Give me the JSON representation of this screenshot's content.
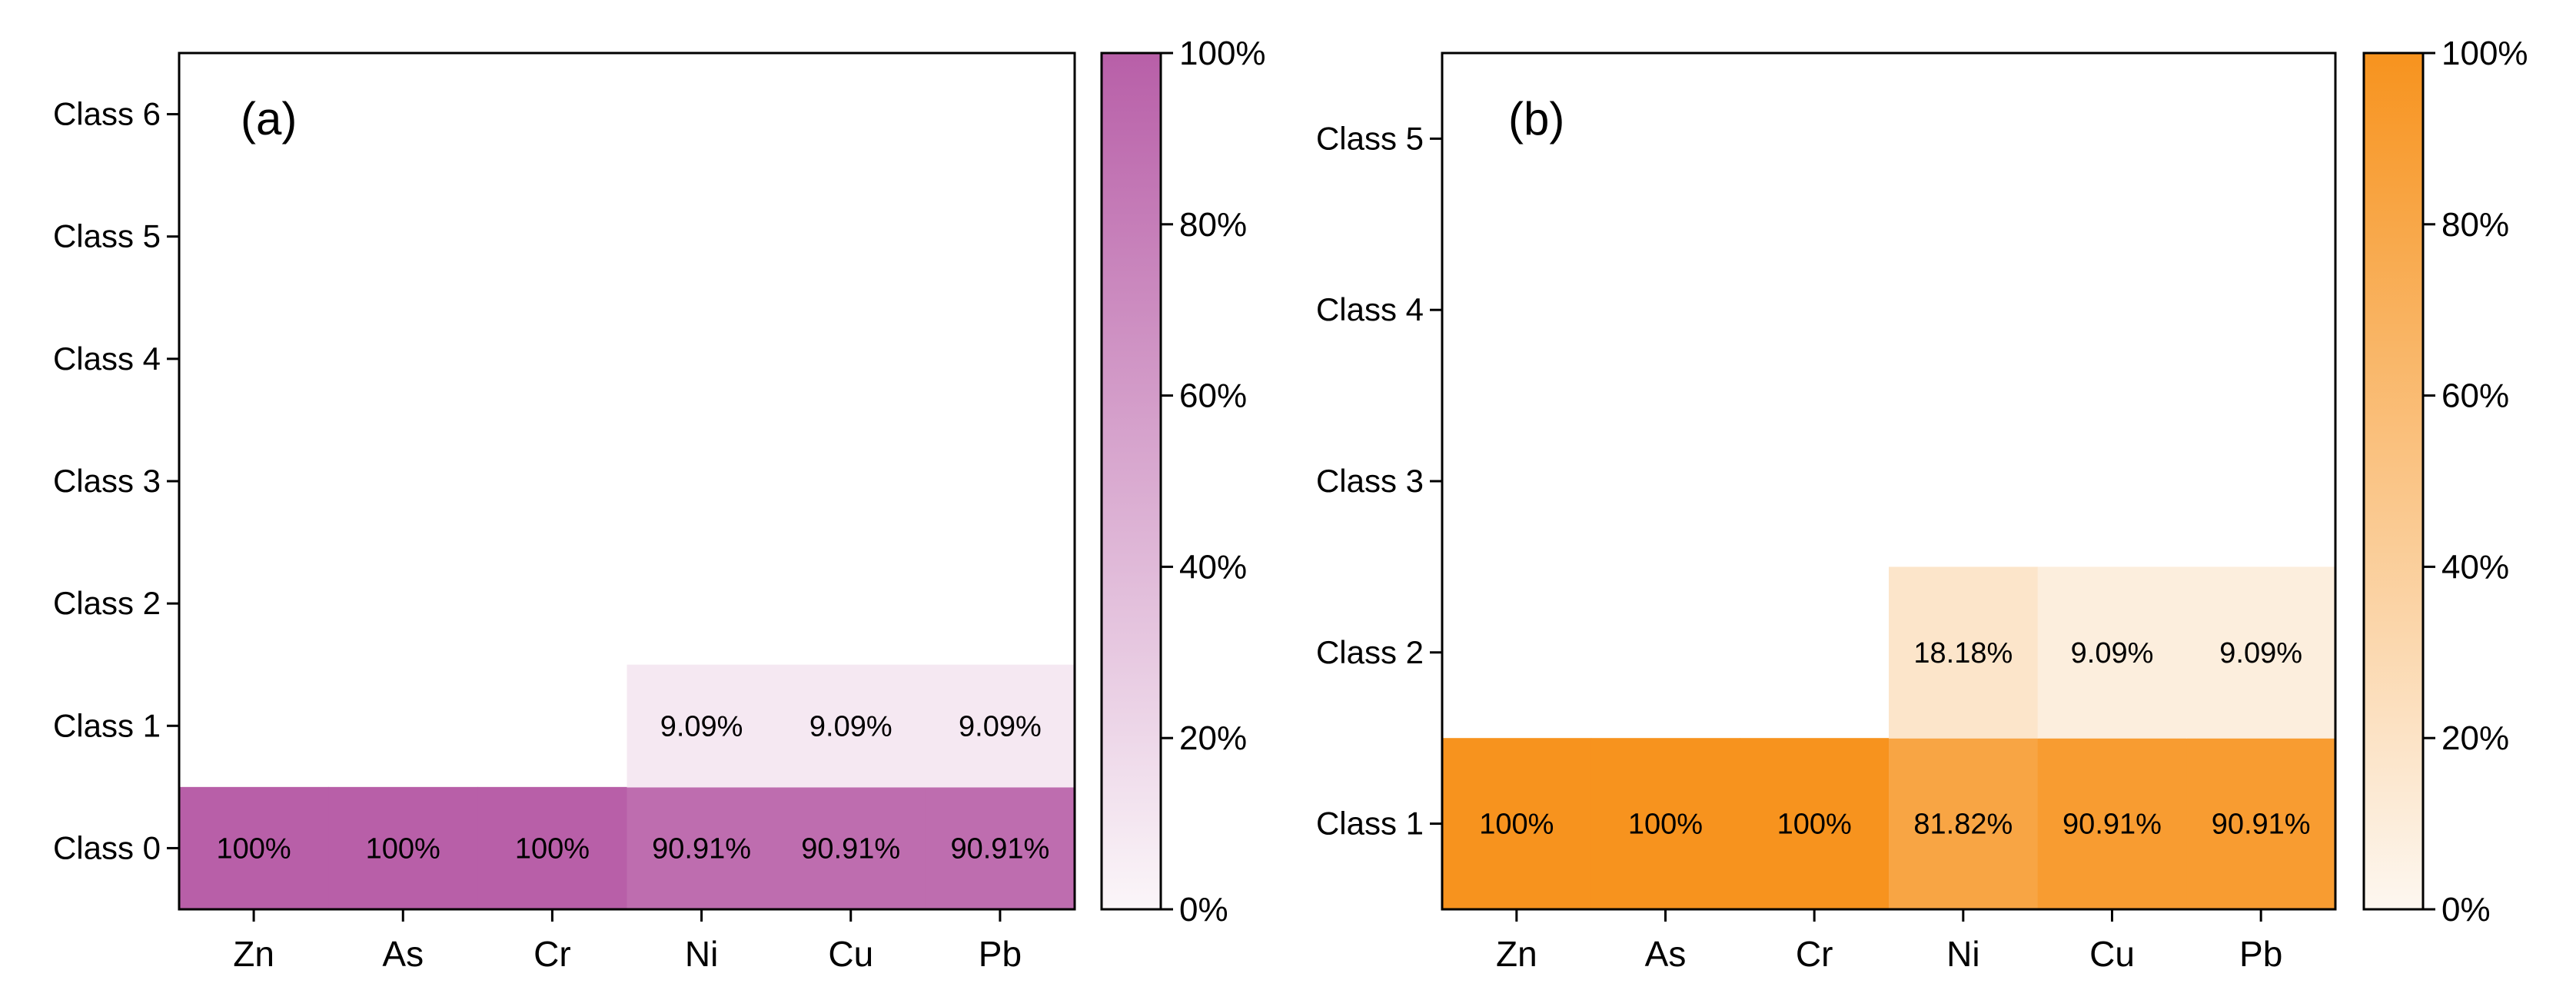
{
  "chart_data": [
    {
      "type": "heatmap",
      "panel_label": "(a)",
      "x_categories": [
        "Zn",
        "As",
        "Cr",
        "Ni",
        "Cu",
        "Pb"
      ],
      "y_categories": [
        "Class 0",
        "Class 1",
        "Class 2",
        "Class 3",
        "Class 4",
        "Class 5",
        "Class 6"
      ],
      "values": [
        [
          100,
          100,
          100,
          90.91,
          90.91,
          90.91
        ],
        [
          0,
          0,
          0,
          9.09,
          9.09,
          9.09
        ],
        [
          0,
          0,
          0,
          0,
          0,
          0
        ],
        [
          0,
          0,
          0,
          0,
          0,
          0
        ],
        [
          0,
          0,
          0,
          0,
          0,
          0
        ],
        [
          0,
          0,
          0,
          0,
          0,
          0
        ],
        [
          0,
          0,
          0,
          0,
          0,
          0
        ]
      ],
      "cell_labels": [
        [
          "100%",
          "100%",
          "100%",
          "90.91%",
          "90.91%",
          "90.91%"
        ],
        [
          "",
          "",
          "",
          "9.09%",
          "9.09%",
          "9.09%"
        ],
        [
          "",
          "",
          "",
          "",
          "",
          ""
        ],
        [
          "",
          "",
          "",
          "",
          "",
          ""
        ],
        [
          "",
          "",
          "",
          "",
          "",
          ""
        ],
        [
          "",
          "",
          "",
          "",
          "",
          ""
        ],
        [
          "",
          "",
          "",
          "",
          "",
          ""
        ]
      ],
      "colorbar": {
        "low_color": "#fbf6f9",
        "high_color": "#b85fa8",
        "range": [
          0,
          100
        ],
        "ticks": [
          0,
          20,
          40,
          60,
          80,
          100
        ],
        "tick_labels": [
          "0%",
          "20%",
          "40%",
          "60%",
          "80%",
          "100%"
        ]
      },
      "grid": false
    },
    {
      "type": "heatmap",
      "panel_label": "(b)",
      "x_categories": [
        "Zn",
        "As",
        "Cr",
        "Ni",
        "Cu",
        "Pb"
      ],
      "y_categories": [
        "Class 1",
        "Class 2",
        "Class 3",
        "Class 4",
        "Class 5"
      ],
      "values": [
        [
          100,
          100,
          100,
          81.82,
          90.91,
          90.91
        ],
        [
          0,
          0,
          0,
          18.18,
          9.09,
          9.09
        ],
        [
          0,
          0,
          0,
          0,
          0,
          0
        ],
        [
          0,
          0,
          0,
          0,
          0,
          0
        ],
        [
          0,
          0,
          0,
          0,
          0,
          0
        ]
      ],
      "cell_labels": [
        [
          "100%",
          "100%",
          "100%",
          "81.82%",
          "90.91%",
          "90.91%"
        ],
        [
          "",
          "",
          "",
          "18.18%",
          "9.09%",
          "9.09%"
        ],
        [
          "",
          "",
          "",
          "",
          "",
          ""
        ],
        [
          "",
          "",
          "",
          "",
          "",
          ""
        ],
        [
          "",
          "",
          "",
          "",
          "",
          ""
        ]
      ],
      "colorbar": {
        "low_color": "#fdf7f0",
        "high_color": "#f7931e",
        "range": [
          0,
          100
        ],
        "ticks": [
          0,
          20,
          40,
          60,
          80,
          100
        ],
        "tick_labels": [
          "0%",
          "20%",
          "40%",
          "60%",
          "80%",
          "100%"
        ]
      },
      "grid": false
    }
  ]
}
